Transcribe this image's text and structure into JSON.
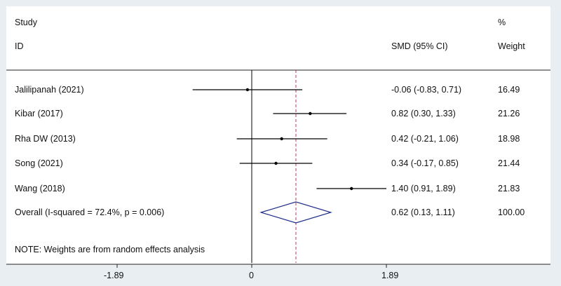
{
  "chart_data": {
    "type": "forest",
    "header": {
      "study_label": "Study",
      "id_label": "ID",
      "effect_label": "SMD (95% CI)",
      "weight_label_top": "%",
      "weight_label": "Weight"
    },
    "studies": [
      {
        "id": "Jalilipanah (2021)",
        "smd": -0.06,
        "lower": -0.83,
        "upper": 0.71,
        "ci_text": "-0.06 (-0.83, 0.71)",
        "weight": "16.49"
      },
      {
        "id": "Kibar (2017)",
        "smd": 0.82,
        "lower": 0.3,
        "upper": 1.33,
        "ci_text": "0.82 (0.30, 1.33)",
        "weight": "21.26"
      },
      {
        "id": "Rha DW (2013)",
        "smd": 0.42,
        "lower": -0.21,
        "upper": 1.06,
        "ci_text": "0.42 (-0.21, 1.06)",
        "weight": "18.98"
      },
      {
        "id": "Song (2021)",
        "smd": 0.34,
        "lower": -0.17,
        "upper": 0.85,
        "ci_text": "0.34 (-0.17, 0.85)",
        "weight": "21.44"
      },
      {
        "id": "Wang (2018)",
        "smd": 1.4,
        "lower": 0.91,
        "upper": 1.89,
        "ci_text": "1.40 (0.91, 1.89)",
        "weight": "21.83"
      }
    ],
    "overall": {
      "label": "Overall  (I-squared = 72.4%, p = 0.006)",
      "smd": 0.62,
      "lower": 0.13,
      "upper": 1.11,
      "ci_text": "0.62 (0.13, 1.11)",
      "weight": "100.00"
    },
    "note": "NOTE: Weights are from random effects analysis",
    "x_axis": {
      "ticks": [
        -1.89,
        0,
        1.89
      ],
      "tick_labels": [
        "-1.89",
        "0",
        "1.89"
      ],
      "range": [
        -1.89,
        1.89
      ]
    },
    "colors": {
      "diamond": "#1f2f8a",
      "overall_line": "#c0394f",
      "line": "#000000",
      "background": "#e9eef3"
    }
  }
}
